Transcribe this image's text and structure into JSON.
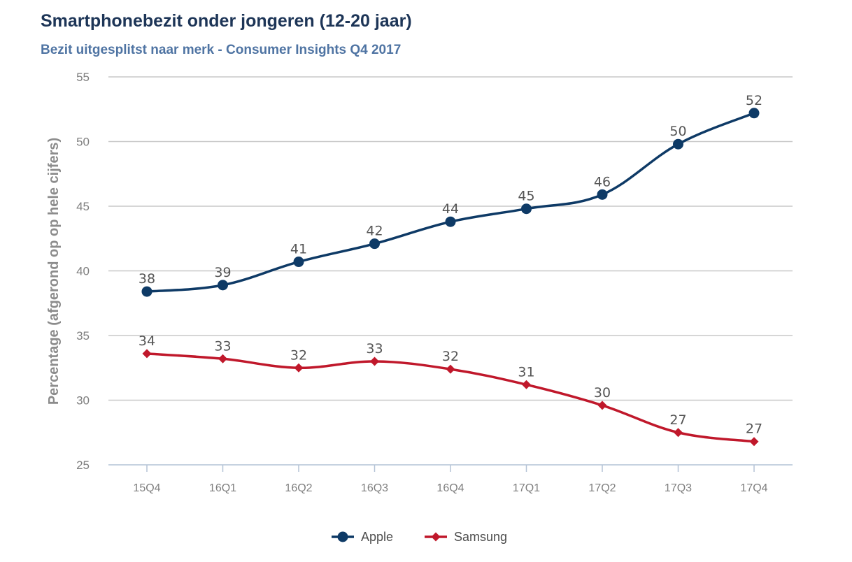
{
  "chart_data": {
    "type": "line",
    "title": "Smartphonebezit onder jongeren (12-20 jaar)",
    "subtitle": "Bezit uitgesplitst naar merk - Consumer Insights Q4 2017",
    "xlabel": "",
    "ylabel": "Percentage (afgerond op op hele cijfers)",
    "categories": [
      "15Q4",
      "16Q1",
      "16Q2",
      "16Q3",
      "16Q4",
      "17Q1",
      "17Q2",
      "17Q3",
      "17Q4"
    ],
    "ylim": [
      25,
      55
    ],
    "yticks": [
      25,
      30,
      35,
      40,
      45,
      50,
      55
    ],
    "grid": true,
    "legend_position": "bottom-center",
    "series": [
      {
        "name": "Apple",
        "color": "#0e3a66",
        "marker": "circle",
        "values": [
          38.4,
          38.9,
          40.7,
          42.1,
          43.8,
          44.8,
          45.9,
          49.8,
          52.2
        ],
        "labels": [
          "38",
          "39",
          "41",
          "42",
          "44",
          "45",
          "46",
          "50",
          "52"
        ]
      },
      {
        "name": "Samsung",
        "color": "#c0182b",
        "marker": "diamond",
        "values": [
          33.6,
          33.2,
          32.5,
          33.0,
          32.4,
          31.2,
          29.6,
          27.5,
          26.8
        ],
        "labels": [
          "34",
          "33",
          "32",
          "33",
          "32",
          "31",
          "30",
          "27",
          "27"
        ]
      }
    ]
  }
}
